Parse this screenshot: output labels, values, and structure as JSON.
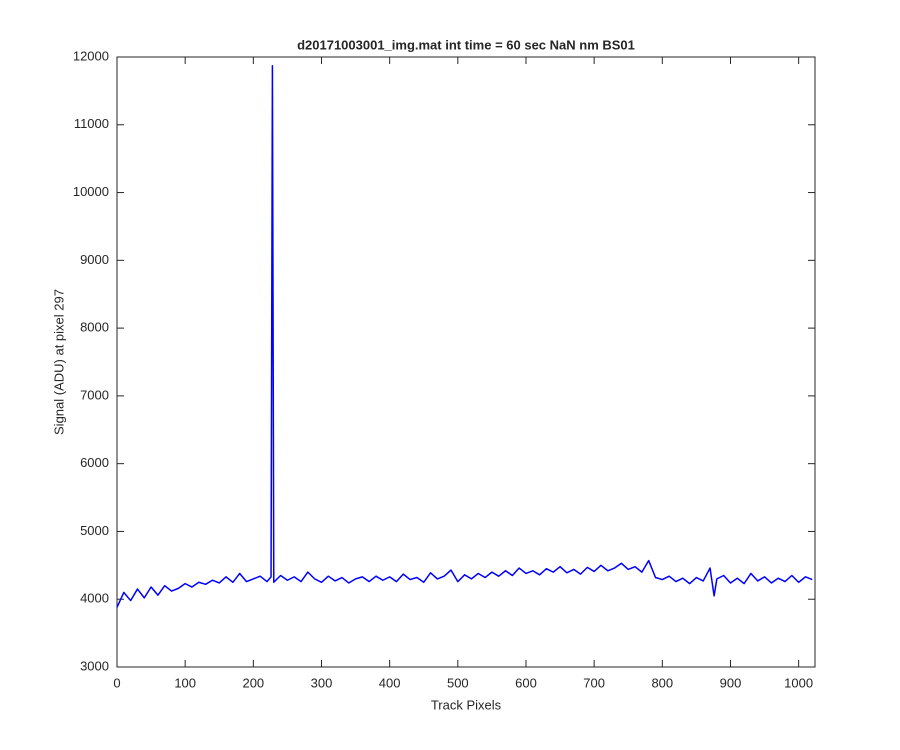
{
  "chart_data": {
    "type": "line",
    "title": "d20171003001_img.mat int time = 60 sec  NaN nm BS01",
    "x_label": "Track Pixels",
    "y_label": "Signal (ADU) at pixel 297",
    "color": "#0000ff",
    "x": [
      0,
      10,
      20,
      30,
      40,
      50,
      60,
      70,
      80,
      90,
      100,
      110,
      120,
      130,
      140,
      150,
      160,
      170,
      180,
      190,
      200,
      210,
      220,
      226,
      228,
      230,
      240,
      250,
      260,
      270,
      280,
      290,
      300,
      310,
      320,
      330,
      340,
      350,
      360,
      370,
      380,
      390,
      400,
      410,
      420,
      430,
      440,
      450,
      460,
      470,
      480,
      490,
      500,
      510,
      520,
      530,
      540,
      550,
      560,
      570,
      580,
      590,
      600,
      610,
      620,
      630,
      640,
      650,
      660,
      670,
      680,
      690,
      700,
      710,
      720,
      730,
      740,
      750,
      760,
      770,
      780,
      790,
      800,
      810,
      820,
      830,
      840,
      850,
      860,
      870,
      876,
      880,
      890,
      900,
      910,
      920,
      930,
      940,
      950,
      960,
      970,
      980,
      990,
      1000,
      1010,
      1020
    ],
    "values": [
      3880,
      4100,
      3980,
      4150,
      4020,
      4180,
      4060,
      4200,
      4120,
      4160,
      4230,
      4180,
      4250,
      4220,
      4280,
      4240,
      4330,
      4250,
      4380,
      4260,
      4300,
      4340,
      4260,
      4330,
      11870,
      4250,
      4350,
      4280,
      4330,
      4260,
      4400,
      4300,
      4250,
      4340,
      4270,
      4320,
      4240,
      4300,
      4330,
      4260,
      4340,
      4280,
      4330,
      4260,
      4370,
      4290,
      4320,
      4250,
      4390,
      4300,
      4340,
      4430,
      4260,
      4360,
      4300,
      4380,
      4320,
      4400,
      4340,
      4420,
      4350,
      4460,
      4380,
      4420,
      4360,
      4450,
      4400,
      4480,
      4390,
      4440,
      4370,
      4470,
      4410,
      4500,
      4420,
      4460,
      4530,
      4440,
      4480,
      4400,
      4570,
      4320,
      4290,
      4340,
      4260,
      4310,
      4230,
      4320,
      4270,
      4460,
      4050,
      4300,
      4350,
      4240,
      4310,
      4230,
      4380,
      4270,
      4330,
      4240,
      4310,
      4260,
      4350,
      4250,
      4330,
      4290
    ],
    "xlim": [
      0,
      1024
    ],
    "xticks": [
      0,
      100,
      200,
      300,
      400,
      500,
      600,
      700,
      800,
      900,
      1000
    ],
    "ylim": [
      3000,
      12000
    ],
    "yticks": [
      3000,
      4000,
      5000,
      6000,
      7000,
      8000,
      9000,
      10000,
      11000,
      12000
    ]
  }
}
